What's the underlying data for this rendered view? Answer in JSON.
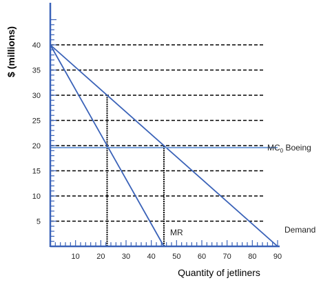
{
  "chart_data": {
    "type": "line",
    "title": "",
    "xlabel": "Quantity of jetliners",
    "ylabel": "$ (millions)",
    "xlim": [
      0,
      90
    ],
    "ylim": [
      0,
      40
    ],
    "x_ticks": [
      10,
      20,
      30,
      40,
      50,
      60,
      70,
      80,
      90
    ],
    "y_ticks": [
      5,
      10,
      15,
      20,
      25,
      30,
      35,
      40
    ],
    "gridlines": "horizontal-dashed",
    "series": [
      {
        "name": "Demand",
        "x": [
          0,
          90
        ],
        "y": [
          40,
          0
        ],
        "color": "#3a62b8"
      },
      {
        "name": "MR",
        "x": [
          0,
          45
        ],
        "y": [
          40,
          0
        ],
        "color": "#3a62b8"
      },
      {
        "name_parts": [
          "MC",
          "0",
          " Boeing"
        ],
        "x": [
          0,
          90
        ],
        "y": [
          19.6,
          19.6
        ],
        "color": "#6f99d6"
      }
    ],
    "dropped_lines": [
      {
        "x": 22.5,
        "y_from": 0,
        "y_to": 30
      },
      {
        "x": 45,
        "y_from": 0,
        "y_to": 20
      }
    ]
  }
}
